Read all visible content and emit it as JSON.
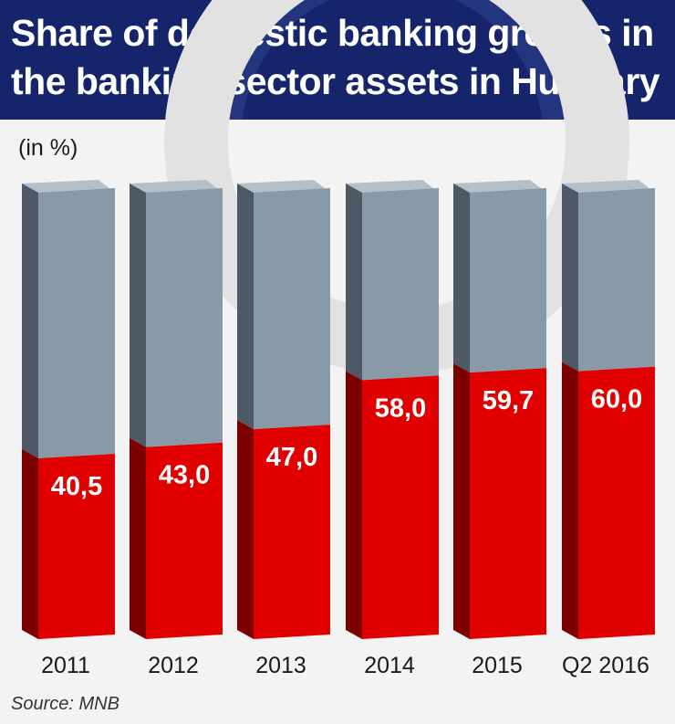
{
  "title_lines": [
    "Share of domestic banking groups in",
    "the banking sector assets in Hungary"
  ],
  "unit_label": "(in %)",
  "source": "Source: MNB",
  "colors": {
    "header": "#16256b",
    "domestic_front": "#e10000",
    "domestic_side": "#7c0000",
    "rest_front": "#8899a8",
    "rest_side": "#4d5965",
    "top_face": "#b5bfc8"
  },
  "chart_data": {
    "type": "bar",
    "stacked": true,
    "three_d": true,
    "categories": [
      "2011",
      "2012",
      "2013",
      "2014",
      "2015",
      "Q2 2016"
    ],
    "series": [
      {
        "values": [
          40.5,
          43.0,
          47.0,
          58.0,
          59.7,
          60.0
        ]
      },
      {
        "values": [
          59.5,
          57.0,
          53.0,
          42.0,
          40.3,
          40.0
        ]
      }
    ],
    "data_labels": [
      "40,5",
      "43,0",
      "47,0",
      "58,0",
      "59,7",
      "60,0"
    ],
    "ylim": [
      0,
      100
    ],
    "grid": false,
    "legend": "none"
  }
}
